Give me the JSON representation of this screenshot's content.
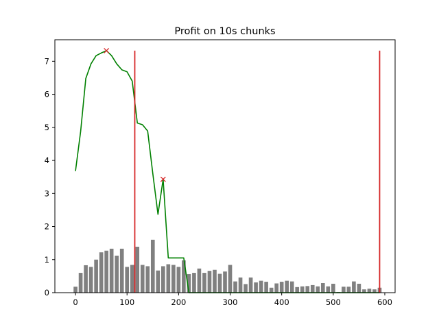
{
  "chart_data": {
    "type": "bar+line",
    "title": "Profit on 10s chunks",
    "xlabel": "",
    "ylabel": "",
    "xlim": [
      -40,
      620
    ],
    "ylim": [
      0,
      7.65
    ],
    "xticks": [
      0,
      100,
      200,
      300,
      400,
      500,
      600
    ],
    "yticks": [
      0,
      1,
      2,
      3,
      4,
      5,
      6,
      7
    ],
    "grid": false,
    "legend": "none",
    "colors": {
      "bars": "#808080",
      "line": "#008000",
      "vlines": "#d62728",
      "markers": "#d62728"
    },
    "bar_width": 7.5,
    "bars": {
      "x": [
        0,
        10,
        20,
        30,
        40,
        50,
        60,
        70,
        80,
        90,
        100,
        110,
        120,
        130,
        140,
        150,
        160,
        170,
        180,
        190,
        200,
        210,
        220,
        230,
        240,
        250,
        260,
        270,
        280,
        290,
        300,
        310,
        320,
        330,
        340,
        350,
        360,
        370,
        380,
        390,
        400,
        410,
        420,
        430,
        440,
        450,
        460,
        470,
        480,
        490,
        500,
        510,
        520,
        530,
        540,
        550,
        560,
        570,
        580,
        590
      ],
      "values": [
        0.18,
        0.6,
        0.83,
        0.78,
        1.0,
        1.22,
        1.27,
        1.33,
        1.12,
        1.33,
        0.78,
        0.84,
        1.39,
        0.84,
        0.8,
        1.6,
        0.67,
        0.8,
        0.86,
        0.84,
        0.78,
        0.98,
        0.56,
        0.6,
        0.73,
        0.6,
        0.66,
        0.69,
        0.57,
        0.64,
        0.84,
        0.34,
        0.46,
        0.26,
        0.46,
        0.31,
        0.36,
        0.33,
        0.15,
        0.28,
        0.33,
        0.36,
        0.34,
        0.17,
        0.19,
        0.2,
        0.23,
        0.19,
        0.29,
        0.19,
        0.27,
        0.02,
        0.18,
        0.18,
        0.34,
        0.27,
        0.1,
        0.12,
        0.1,
        0.15
      ]
    },
    "line": {
      "x": [
        0,
        10,
        20,
        30,
        40,
        50,
        60,
        70,
        80,
        90,
        100,
        110,
        120,
        130,
        140,
        150,
        160,
        170,
        180,
        190,
        200,
        210,
        220,
        230,
        240,
        250,
        260,
        270,
        280,
        290,
        300,
        310,
        320,
        330,
        340,
        350,
        360,
        370,
        380,
        390,
        400,
        410,
        420,
        430,
        440,
        450,
        460,
        470,
        480,
        490,
        500,
        510,
        520,
        530,
        540,
        550,
        560,
        570,
        580,
        590
      ],
      "values": [
        3.68,
        4.88,
        6.48,
        6.92,
        7.17,
        7.25,
        7.32,
        7.17,
        6.92,
        6.74,
        6.68,
        6.4,
        5.13,
        5.08,
        4.89,
        3.6,
        2.37,
        3.43,
        1.05,
        1.05,
        1.05,
        1.05,
        0,
        0,
        0,
        0,
        0,
        0,
        0,
        0,
        0,
        0,
        0,
        0,
        0,
        0,
        0,
        0,
        0,
        0,
        0,
        0,
        0,
        0,
        0,
        0,
        0,
        0,
        0,
        0,
        0,
        0,
        0,
        0,
        0,
        0,
        0,
        0,
        0,
        0
      ]
    },
    "markers": {
      "x": [
        60,
        170
      ],
      "values": [
        7.32,
        3.43
      ]
    },
    "vlines": [
      {
        "x": 115,
        "ymin": 0,
        "ymax": 7.32
      },
      {
        "x": 590,
        "ymin": 0,
        "ymax": 7.32
      }
    ]
  }
}
